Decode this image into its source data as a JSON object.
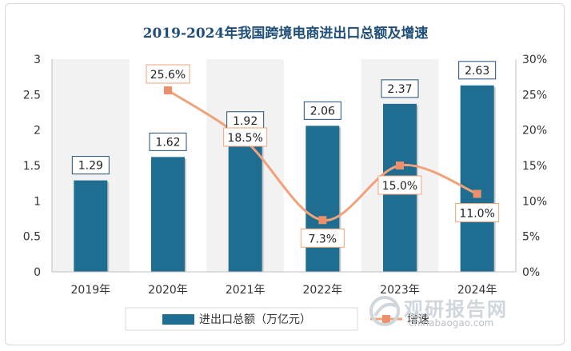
{
  "chart_data": {
    "type": "bar+line",
    "title": "2019-2024年我国跨境电商进出口总额及增速",
    "categories": [
      "2019年",
      "2020年",
      "2021年",
      "2022年",
      "2023年",
      "2024年"
    ],
    "series": [
      {
        "name": "进出口总额（万亿元）",
        "type": "bar",
        "axis": "left",
        "values": [
          1.29,
          1.62,
          1.92,
          2.06,
          2.37,
          2.63
        ],
        "labels": [
          "1.29",
          "1.62",
          "1.92",
          "2.06",
          "2.37",
          "2.63"
        ],
        "color": "#1f6e91"
      },
      {
        "name": "增速",
        "type": "line",
        "axis": "right",
        "values": [
          null,
          25.6,
          18.5,
          7.3,
          15.0,
          11.0
        ],
        "labels": [
          "",
          "25.6%",
          "18.5%",
          "7.3%",
          "15.0%",
          "11.0%"
        ],
        "color": "#f2a27a"
      }
    ],
    "y_left": {
      "min": 0,
      "max": 3,
      "ticks": [
        "0",
        "0.5",
        "1",
        "1.5",
        "2",
        "2.5",
        "3"
      ]
    },
    "y_right": {
      "min": 0,
      "max": 30,
      "ticks": [
        "0%",
        "5%",
        "10%",
        "15%",
        "20%",
        "25%",
        "30%"
      ]
    },
    "grid": false,
    "legend": "bottom"
  },
  "watermark": {
    "text": "观研报告网",
    "url": "chinabaogao.com"
  }
}
